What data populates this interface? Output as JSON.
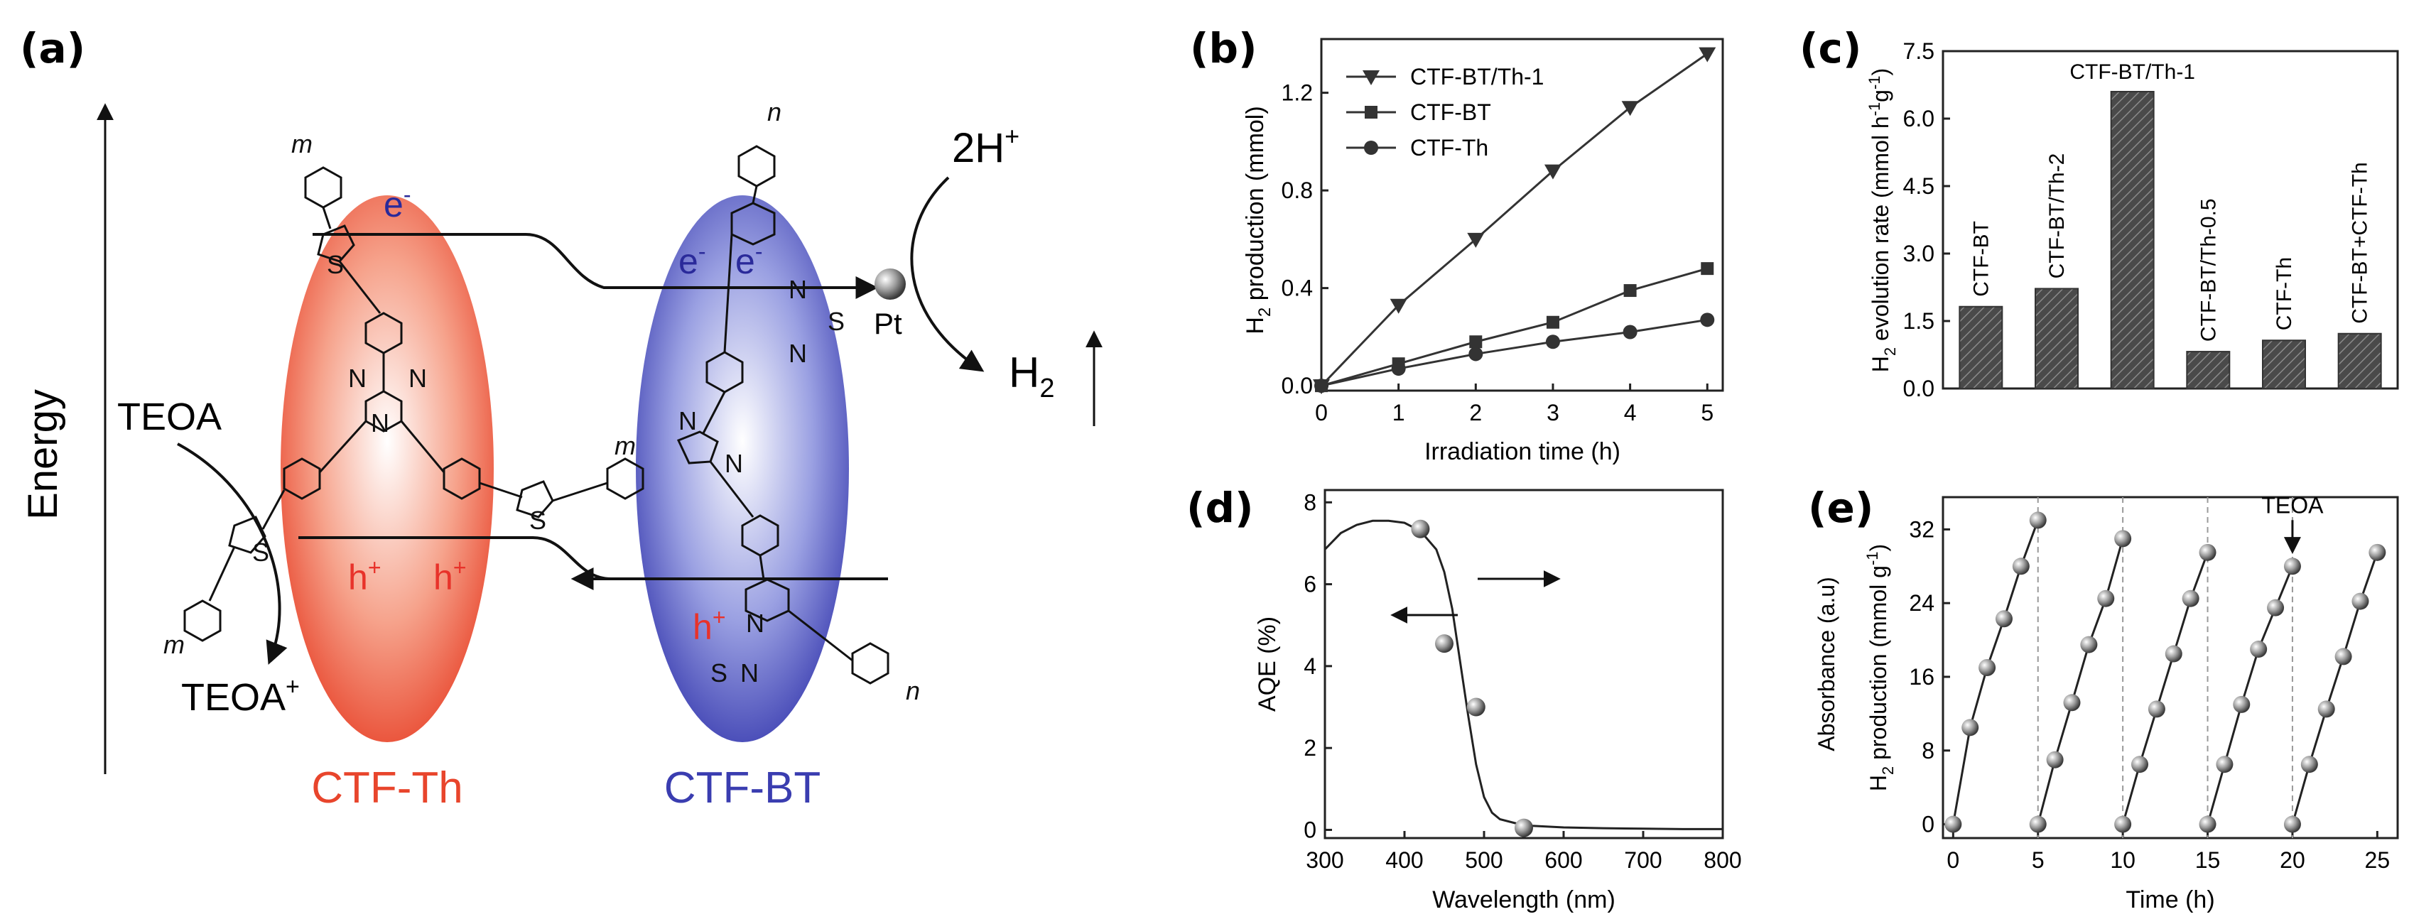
{
  "panel_a": {
    "label": "(a)",
    "energy_label": "Energy",
    "teoa": "TEOA",
    "teoa_plus": "TEOA",
    "teoa_plus_sup": "+",
    "two_h_plus": "2H",
    "two_h_plus_sup": "+",
    "h2": "H",
    "h2_sub": "2",
    "pt": "Pt",
    "electron": "e",
    "electron_sup": "-",
    "hole": "h",
    "hole_sup": "+",
    "ctf_th": "CTF-Th",
    "ctf_bt": "CTF-BT",
    "atom_s": "S",
    "atom_n": "N",
    "repeat_m": "m",
    "repeat_n": "n",
    "colors": {
      "ctf_th": "#e8452c",
      "ctf_bt": "#3a3db0",
      "hole": "#e8322a",
      "electron": "#2a2a9a"
    }
  },
  "chart_data": [
    {
      "panel": "(b)",
      "type": "line",
      "xlabel": "Irradiation time (h)",
      "ylabel": "H2 production (mmol)",
      "xlim": [
        0,
        5.2
      ],
      "ylim": [
        -0.02,
        1.42
      ],
      "xticks": [
        0,
        1,
        2,
        3,
        4,
        5
      ],
      "yticks": [
        0.0,
        0.4,
        0.8,
        1.2
      ],
      "ytick_labels": [
        "0.0",
        "0.4",
        "0.8",
        "1.2"
      ],
      "x": [
        0,
        1,
        2,
        3,
        4,
        5
      ],
      "series": [
        {
          "name": "CTF-BT/Th-1",
          "marker": "triangle-down",
          "values": [
            0.0,
            0.33,
            0.6,
            0.88,
            1.14,
            1.36
          ]
        },
        {
          "name": "CTF-BT",
          "marker": "square",
          "values": [
            0.0,
            0.09,
            0.18,
            0.26,
            0.39,
            0.48
          ]
        },
        {
          "name": "CTF-Th",
          "marker": "circle",
          "values": [
            0.0,
            0.07,
            0.13,
            0.18,
            0.22,
            0.27
          ]
        }
      ]
    },
    {
      "panel": "(c)",
      "type": "bar",
      "ylabel": "H2 evolution rate (mmol h-1g-1)",
      "ylim": [
        0,
        7.5
      ],
      "yticks": [
        0.0,
        1.5,
        3.0,
        4.5,
        6.0,
        7.5
      ],
      "ytick_labels": [
        "0.0",
        "1.5",
        "3.0",
        "4.5",
        "6.0",
        "7.5"
      ],
      "categories": [
        "CTF-BT",
        "CTF-BT/Th-2",
        "CTF-BT/Th-1",
        "CTF-BT/Th-0.5",
        "CTF-Th",
        "CTF-BT+CTF-Th"
      ],
      "values": [
        1.82,
        2.22,
        6.6,
        0.82,
        1.07,
        1.22
      ]
    },
    {
      "panel": "(d)",
      "type": "line",
      "xlabel": "Wavelength (nm)",
      "ylabel": "AQE (%)",
      "ylabel_right": "Absorbance (a.u)",
      "xlim": [
        300,
        800
      ],
      "ylim": [
        -0.2,
        8.3
      ],
      "xticks": [
        300,
        400,
        500,
        600,
        700,
        800
      ],
      "yticks": [
        0,
        2,
        4,
        6,
        8
      ],
      "aqe_points": {
        "x": [
          420,
          450,
          490,
          550
        ],
        "y": [
          7.35,
          4.55,
          3.0,
          0.05
        ]
      },
      "absorbance_curve": {
        "x": [
          300,
          320,
          340,
          360,
          380,
          400,
          420,
          440,
          450,
          460,
          470,
          480,
          490,
          500,
          510,
          520,
          540,
          560,
          600,
          650,
          700,
          750,
          800
        ],
        "y": [
          6.85,
          7.25,
          7.45,
          7.55,
          7.55,
          7.5,
          7.3,
          6.85,
          6.3,
          5.4,
          4.1,
          2.8,
          1.6,
          0.8,
          0.42,
          0.26,
          0.16,
          0.1,
          0.06,
          0.04,
          0.03,
          0.02,
          0.02
        ]
      }
    },
    {
      "panel": "(e)",
      "type": "scatter",
      "xlabel": "Time (h)",
      "ylabel": "H2 production (mmol g-1)",
      "xlim": [
        -0.6,
        26.2
      ],
      "ylim": [
        -1.5,
        35.5
      ],
      "xticks": [
        0,
        5,
        10,
        15,
        20,
        25
      ],
      "yticks": [
        0,
        8,
        16,
        24,
        32
      ],
      "cycles": [
        {
          "x": [
            0,
            1,
            2,
            3,
            4,
            5
          ],
          "y": [
            0,
            10.5,
            17.0,
            22.3,
            28.0,
            33.0
          ]
        },
        {
          "x": [
            5,
            6,
            7,
            8,
            9,
            10
          ],
          "y": [
            0,
            7.0,
            13.2,
            19.5,
            24.5,
            31.0
          ]
        },
        {
          "x": [
            10,
            11,
            12,
            13,
            14,
            15
          ],
          "y": [
            0,
            6.5,
            12.5,
            18.5,
            24.5,
            29.5
          ]
        },
        {
          "x": [
            15,
            16,
            17,
            18,
            19,
            20
          ],
          "y": [
            0,
            6.5,
            13.0,
            19.0,
            23.5,
            28.0
          ]
        },
        {
          "x": [
            20,
            21,
            22,
            23,
            24,
            25
          ],
          "y": [
            0,
            6.5,
            12.5,
            18.2,
            24.2,
            29.5
          ]
        }
      ],
      "cycle_boundaries": [
        5,
        10,
        15,
        20
      ],
      "annotation": {
        "text": "TEOA",
        "x": 20,
        "y": 28.0
      }
    }
  ]
}
